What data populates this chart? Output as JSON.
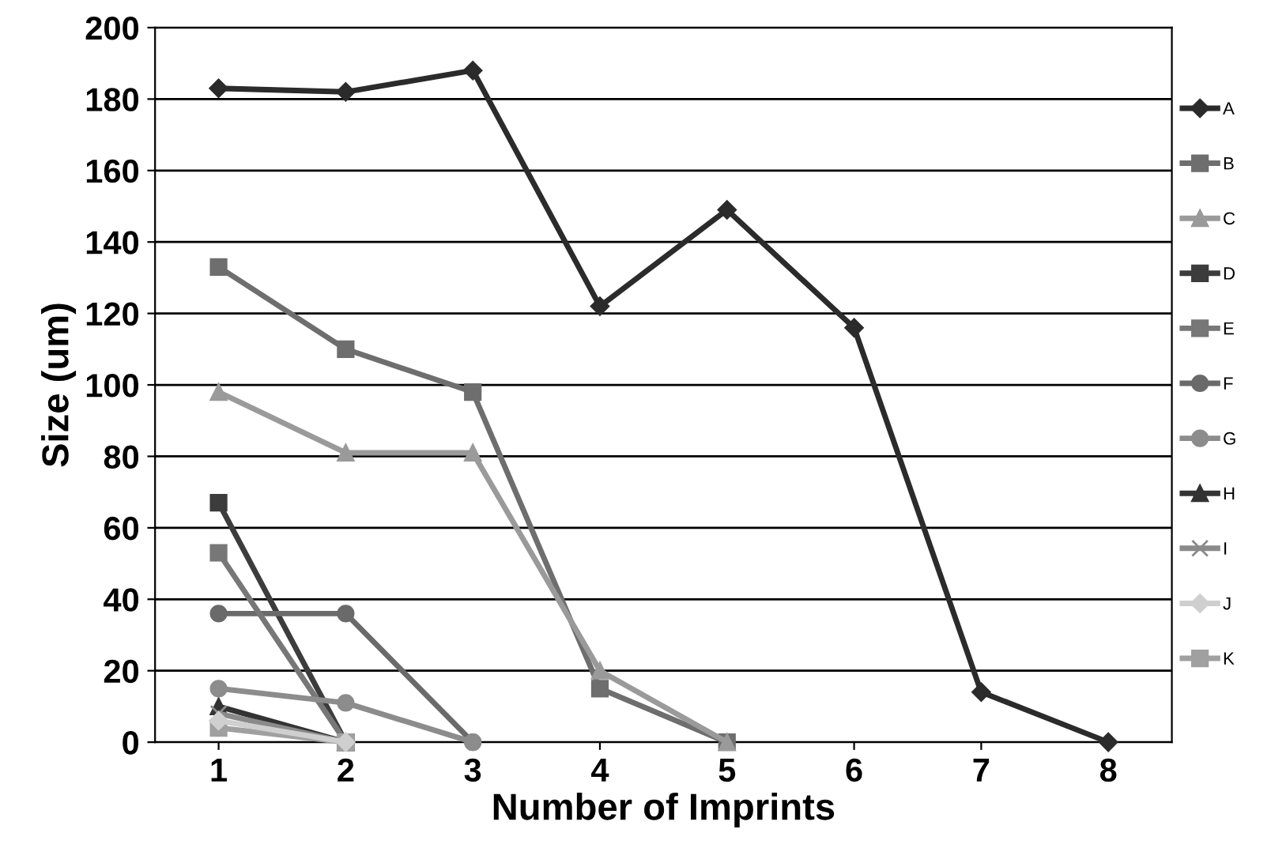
{
  "chart_data": {
    "type": "line",
    "xlabel": "Number of Imprints",
    "ylabel": "Size (um)",
    "categories": [
      "1",
      "2",
      "3",
      "4",
      "5",
      "6",
      "7",
      "8"
    ],
    "ylim": [
      0,
      200
    ],
    "yticks": [
      0,
      20,
      40,
      60,
      80,
      100,
      120,
      140,
      160,
      180,
      200
    ],
    "grid": "y",
    "legend": "right",
    "line_style": "solid",
    "series": [
      {
        "name": "A",
        "color": "#2b2b2b",
        "marker": "diamond",
        "values": [
          183,
          182,
          188,
          122,
          149,
          116,
          14,
          0
        ]
      },
      {
        "name": "B",
        "color": "#6e6e6e",
        "marker": "square",
        "values": [
          133,
          110,
          98,
          15,
          0,
          null,
          null,
          null
        ]
      },
      {
        "name": "C",
        "color": "#9a9a9a",
        "marker": "triangle",
        "values": [
          98,
          81,
          81,
          20,
          0,
          null,
          null,
          null
        ]
      },
      {
        "name": "D",
        "color": "#3c3c3c",
        "marker": "square",
        "values": [
          67,
          0,
          null,
          null,
          null,
          null,
          null,
          null
        ]
      },
      {
        "name": "E",
        "color": "#777777",
        "marker": "square",
        "values": [
          53,
          0,
          null,
          null,
          null,
          null,
          null,
          null
        ]
      },
      {
        "name": "F",
        "color": "#6a6a6a",
        "marker": "circle",
        "values": [
          36,
          36,
          0,
          null,
          null,
          null,
          null,
          null
        ]
      },
      {
        "name": "G",
        "color": "#8c8c8c",
        "marker": "circle",
        "values": [
          15,
          11,
          0,
          null,
          null,
          null,
          null,
          null
        ]
      },
      {
        "name": "H",
        "color": "#333333",
        "marker": "triangle",
        "values": [
          10,
          0,
          null,
          null,
          null,
          null,
          null,
          null
        ]
      },
      {
        "name": "I",
        "color": "#8a8a8a",
        "marker": "cross",
        "values": [
          8,
          0,
          null,
          null,
          null,
          null,
          null,
          null
        ]
      },
      {
        "name": "J",
        "color": "#cfcfcf",
        "marker": "diamond",
        "values": [
          6,
          0,
          null,
          null,
          null,
          null,
          null,
          null
        ]
      },
      {
        "name": "K",
        "color": "#a0a0a0",
        "marker": "square",
        "values": [
          4,
          0,
          null,
          null,
          null,
          null,
          null,
          null
        ]
      }
    ]
  }
}
